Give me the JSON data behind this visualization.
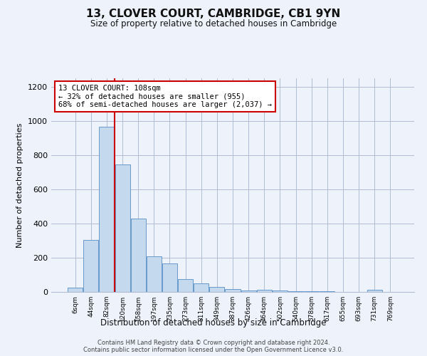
{
  "title1": "13, CLOVER COURT, CAMBRIDGE, CB1 9YN",
  "title2": "Size of property relative to detached houses in Cambridge",
  "xlabel": "Distribution of detached houses by size in Cambridge",
  "ylabel": "Number of detached properties",
  "bar_labels": [
    "6sqm",
    "44sqm",
    "82sqm",
    "120sqm",
    "158sqm",
    "197sqm",
    "235sqm",
    "273sqm",
    "311sqm",
    "349sqm",
    "387sqm",
    "426sqm",
    "464sqm",
    "502sqm",
    "540sqm",
    "578sqm",
    "617sqm",
    "655sqm",
    "693sqm",
    "731sqm",
    "769sqm"
  ],
  "bar_values": [
    25,
    305,
    965,
    745,
    430,
    210,
    165,
    75,
    48,
    30,
    18,
    10,
    12,
    8,
    6,
    4,
    3,
    2,
    2,
    12,
    2
  ],
  "bar_color": "#c5d9ee",
  "bar_edgecolor": "#6699cc",
  "vline_color": "#cc0000",
  "annotation_text": "13 CLOVER COURT: 108sqm\n← 32% of detached houses are smaller (955)\n68% of semi-detached houses are larger (2,037) →",
  "annotation_box_color": "#ffffff",
  "annotation_box_edgecolor": "#cc0000",
  "ylim": [
    0,
    1250
  ],
  "yticks": [
    0,
    200,
    400,
    600,
    800,
    1000,
    1200
  ],
  "footer1": "Contains HM Land Registry data © Crown copyright and database right 2024.",
  "footer2": "Contains public sector information licensed under the Open Government Licence v3.0.",
  "bg_color": "#eef3fb"
}
